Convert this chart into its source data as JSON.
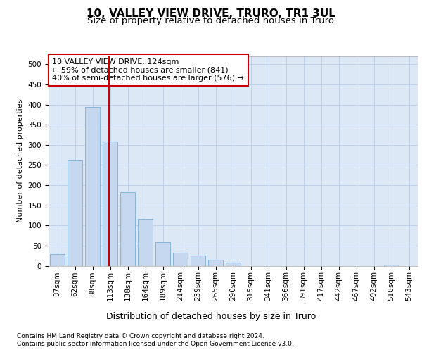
{
  "title1": "10, VALLEY VIEW DRIVE, TRURO, TR1 3UL",
  "title2": "Size of property relative to detached houses in Truro",
  "xlabel": "Distribution of detached houses by size in Truro",
  "ylabel": "Number of detached properties",
  "bar_labels": [
    "37sqm",
    "62sqm",
    "88sqm",
    "113sqm",
    "138sqm",
    "164sqm",
    "189sqm",
    "214sqm",
    "239sqm",
    "265sqm",
    "290sqm",
    "315sqm",
    "341sqm",
    "366sqm",
    "391sqm",
    "417sqm",
    "442sqm",
    "467sqm",
    "492sqm",
    "518sqm",
    "543sqm"
  ],
  "bar_values": [
    29,
    263,
    395,
    309,
    183,
    117,
    58,
    32,
    26,
    15,
    7,
    0,
    0,
    0,
    0,
    0,
    0,
    0,
    0,
    2,
    0
  ],
  "bar_color": "#c5d8ef",
  "bar_edge_color": "#7aaed6",
  "grid_color": "#c0d0e8",
  "bg_color": "#dce8f5",
  "vline_color": "#cc0000",
  "annotation_line1": "10 VALLEY VIEW DRIVE: 124sqm",
  "annotation_line2": "← 59% of detached houses are smaller (841)",
  "annotation_line3": "40% of semi-detached houses are larger (576) →",
  "annotation_box_color": "#ffffff",
  "annotation_border_color": "#cc0000",
  "ylim": [
    0,
    520
  ],
  "yticks": [
    0,
    50,
    100,
    150,
    200,
    250,
    300,
    350,
    400,
    450,
    500
  ],
  "footnote1": "Contains HM Land Registry data © Crown copyright and database right 2024.",
  "footnote2": "Contains public sector information licensed under the Open Government Licence v3.0.",
  "title1_fontsize": 11,
  "title2_fontsize": 9.5,
  "xlabel_fontsize": 9,
  "ylabel_fontsize": 8,
  "tick_fontsize": 7.5,
  "annotation_fontsize": 8,
  "footnote_fontsize": 6.5
}
